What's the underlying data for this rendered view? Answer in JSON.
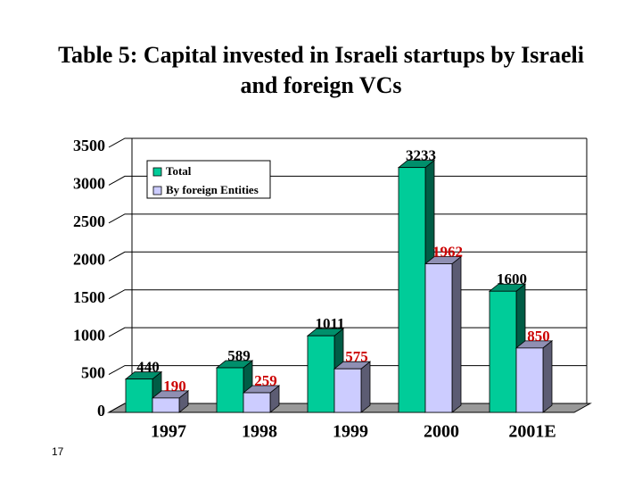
{
  "chart_data": {
    "type": "bar3d",
    "title": "Table 5: Capital invested in Israeli startups by Israeli and foreign VCs",
    "categories": [
      "1997",
      "1998",
      "1999",
      "2000",
      "2001E"
    ],
    "series": [
      {
        "name": "Total",
        "color": "#00cc99",
        "label_color": "#000000",
        "values": [
          440,
          589,
          1011,
          3233,
          1600
        ]
      },
      {
        "name": "By foreign Entities",
        "color": "#ccccff",
        "label_color": "#cc0000",
        "values": [
          190,
          259,
          575,
          1962,
          850
        ]
      }
    ],
    "ylim": [
      0,
      3500
    ],
    "yticks": [
      0,
      500,
      1000,
      1500,
      2000,
      2500,
      3000,
      3500
    ],
    "grid": true
  },
  "slide_number": 17
}
